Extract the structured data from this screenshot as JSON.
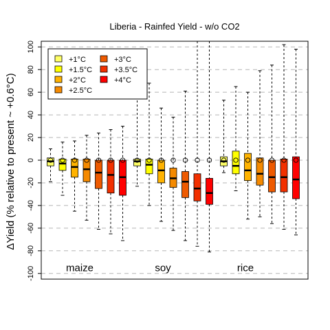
{
  "chart_data": {
    "type": "boxplot",
    "title": "Liberia - Rainfed Yield - w/o CO2",
    "ylabel": "ΔYield (% relative to present ~ +0.6°C)",
    "xlabel": "",
    "ylim": [
      -105,
      105
    ],
    "y_ticks": [
      -100,
      -80,
      -60,
      -40,
      -20,
      0,
      20,
      40,
      60,
      80,
      100
    ],
    "grid": "horizontal dashed",
    "legend_position": "top-left",
    "legend": [
      {
        "label": "+1°C",
        "color": "#FFFF66"
      },
      {
        "label": "+1.5°C",
        "color": "#FFFF00"
      },
      {
        "label": "+2°C",
        "color": "#FFB300"
      },
      {
        "label": "+2.5°C",
        "color": "#F58A00"
      },
      {
        "label": "+3°C",
        "color": "#EE5A00"
      },
      {
        "label": "+3.5°C",
        "color": "#F23000"
      },
      {
        "label": "+4°C",
        "color": "#FF0000"
      }
    ],
    "groups": [
      {
        "crop": "maize",
        "boxes": [
          {
            "level": "+1°C",
            "whisker_low": -19,
            "q1": -5,
            "median": -1,
            "q3": 2,
            "whisker_high": 10,
            "mean": 0
          },
          {
            "level": "+1.5°C",
            "whisker_low": -31,
            "q1": -9,
            "median": -3,
            "q3": 1,
            "whisker_high": 16,
            "mean": 0
          },
          {
            "level": "+2°C",
            "whisker_low": -45,
            "q1": -15,
            "median": -6,
            "q3": 1,
            "whisker_high": 17,
            "mean": 0
          },
          {
            "level": "+2.5°C",
            "whisker_low": -53,
            "q1": -19,
            "median": -8,
            "q3": 1,
            "whisker_high": 22,
            "mean": 0
          },
          {
            "level": "+3°C",
            "whisker_low": -61,
            "q1": -25,
            "median": -11,
            "q3": 0,
            "whisker_high": 24,
            "mean": 0
          },
          {
            "level": "+3.5°C",
            "whisker_low": -65,
            "q1": -29,
            "median": -13,
            "q3": 0,
            "whisker_high": 27,
            "mean": 0
          },
          {
            "level": "+4°C",
            "whisker_low": -71,
            "q1": -31,
            "median": -15,
            "q3": 0,
            "whisker_high": 30,
            "mean": 0
          }
        ]
      },
      {
        "crop": "soy",
        "boxes": [
          {
            "level": "+1°C",
            "whisker_low": -23,
            "q1": -5,
            "median": -1,
            "q3": 1,
            "whisker_high": 60,
            "mean": 0
          },
          {
            "level": "+1.5°C",
            "whisker_low": -40,
            "q1": -12,
            "median": -4,
            "q3": 1,
            "whisker_high": 68,
            "mean": 0
          },
          {
            "level": "+2°C",
            "whisker_low": -54,
            "q1": -20,
            "median": -9,
            "q3": 0,
            "whisker_high": 46,
            "mean": 0
          },
          {
            "level": "+2.5°C",
            "whisker_low": -62,
            "q1": -24,
            "median": -16,
            "q3": -7,
            "whisker_high": 38,
            "mean": 0
          },
          {
            "level": "+3°C",
            "whisker_low": -71,
            "q1": -33,
            "median": -19,
            "q3": -10,
            "whisker_high": 61,
            "mean": 0
          },
          {
            "level": "+3.5°C",
            "whisker_low": -76,
            "q1": -36,
            "median": -25,
            "q3": -12,
            "whisker_high": 105,
            "mean": 0
          },
          {
            "level": "+4°C",
            "whisker_low": -81,
            "q1": -39,
            "median": -29,
            "q3": -16,
            "whisker_high": 105,
            "mean": 0
          }
        ]
      },
      {
        "crop": "rice",
        "boxes": [
          {
            "level": "+1°C",
            "whisker_low": -11,
            "q1": -5,
            "median": -1,
            "q3": 3,
            "whisker_high": 53,
            "mean": 0
          },
          {
            "level": "+1.5°C",
            "whisker_low": -27,
            "q1": -12,
            "median": -5,
            "q3": 8,
            "whisker_high": 65,
            "mean": 0
          },
          {
            "level": "+2°C",
            "whisker_low": -52,
            "q1": -18,
            "median": -9,
            "q3": 6,
            "whisker_high": 60,
            "mean": 0
          },
          {
            "level": "+2.5°C",
            "whisker_low": -50,
            "q1": -22,
            "median": -12,
            "q3": 2,
            "whisker_high": 79,
            "mean": 0
          },
          {
            "level": "+3°C",
            "whisker_low": -56,
            "q1": -28,
            "median": -15,
            "q3": 0,
            "whisker_high": 84,
            "mean": 0
          },
          {
            "level": "+3.5°C",
            "whisker_low": -61,
            "q1": -28,
            "median": -15,
            "q3": 1,
            "whisker_high": 102,
            "mean": 0
          },
          {
            "level": "+4°C",
            "whisker_low": -66,
            "q1": -34,
            "median": -17,
            "q3": 3,
            "whisker_high": 98,
            "mean": 0
          }
        ]
      }
    ]
  }
}
